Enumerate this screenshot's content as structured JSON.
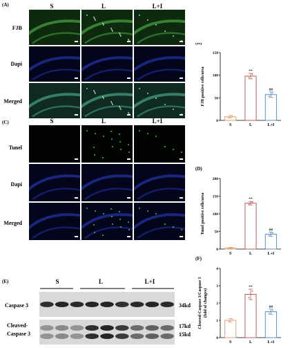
{
  "panels": {
    "A": {
      "label": "(A)",
      "columns": [
        "S",
        "L",
        "L+I"
      ],
      "rows": [
        "FJB",
        "Dapi",
        "Merged"
      ]
    },
    "C": {
      "label": "(C)",
      "columns": [
        "S",
        "L",
        "L+I"
      ],
      "rows": [
        "Tunel",
        "Dapi",
        "Merged"
      ]
    },
    "E": {
      "label": "(E)",
      "groups": [
        "S",
        "L",
        "L+I"
      ],
      "bands": [
        "Caspase 3",
        "Cleaved-Caspase 3"
      ],
      "band_label_lines": [
        [
          "Caspase 3"
        ],
        [
          "Cleaved-",
          "Caspase 3"
        ]
      ],
      "sizes": [
        "34kd",
        "17kd",
        "15kd"
      ]
    }
  },
  "chart_data": [
    {
      "panel": "(B)",
      "type": "bar",
      "ylabel": "FJB positive cells/area",
      "categories": [
        "S",
        "L",
        "L+I"
      ],
      "values": [
        8,
        98,
        57
      ],
      "errors": [
        3,
        6,
        6
      ],
      "ylim": [
        0,
        150
      ],
      "yticks": [
        0,
        50,
        100,
        150
      ],
      "annotations": [
        "",
        "**",
        "##"
      ],
      "colors": [
        "#e0a074",
        "#c45a5a",
        "#5a8fc4"
      ]
    },
    {
      "panel": "(D)",
      "type": "bar",
      "ylabel": "Tunel positive cells/area",
      "categories": [
        "S",
        "L",
        "L+I"
      ],
      "values": [
        3,
        130,
        42
      ],
      "errors": [
        2,
        5,
        6
      ],
      "ylim": [
        0,
        200
      ],
      "yticks": [
        0,
        50,
        100,
        150,
        200
      ],
      "annotations": [
        "",
        "**",
        "##"
      ],
      "colors": [
        "#e0a074",
        "#c45a5a",
        "#5a8fc4"
      ]
    },
    {
      "panel": "(F)",
      "type": "bar",
      "ylabel_lines": [
        "Cleaved-Caspase 3/Caspase 3",
        "(fold of changes)"
      ],
      "categories": [
        "S",
        "L",
        "L+I"
      ],
      "values": [
        1.0,
        2.5,
        1.5
      ],
      "errors": [
        0.1,
        0.3,
        0.15
      ],
      "ylim": [
        0,
        4
      ],
      "yticks": [
        0,
        1,
        2,
        3,
        4
      ],
      "annotations": [
        "",
        "**",
        "##"
      ],
      "colors": [
        "#e0a074",
        "#c45a5a",
        "#5a8fc4"
      ]
    }
  ]
}
